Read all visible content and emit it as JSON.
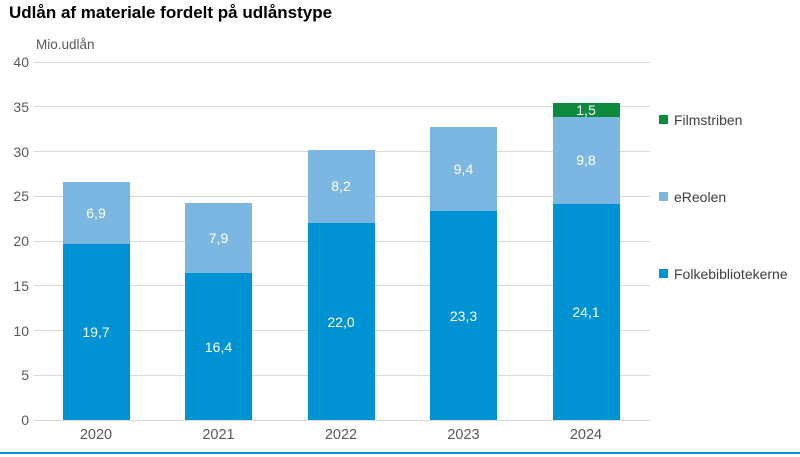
{
  "chart_data": {
    "type": "bar",
    "stacked": true,
    "title": "Udlån af materiale fordelt på udlånstype",
    "unit_label": "Mio.udlån",
    "categories": [
      "2020",
      "2021",
      "2022",
      "2023",
      "2024"
    ],
    "series": [
      {
        "name": "Folkebibliotekerne",
        "color": "#0093d3",
        "values": [
          19.7,
          16.4,
          22.0,
          23.3,
          24.1
        ]
      },
      {
        "name": "eReolen",
        "color": "#7cb7e2",
        "values": [
          6.9,
          7.9,
          8.2,
          9.4,
          9.8
        ]
      },
      {
        "name": "Filmstriben",
        "color": "#0d8a3e",
        "values": [
          0,
          0,
          0,
          0,
          1.5
        ]
      }
    ],
    "value_labels": {
      "Folkebibliotekerne": [
        "19,7",
        "16,4",
        "22,0",
        "23,3",
        "24,1"
      ],
      "eReolen": [
        "6,9",
        "7,9",
        "8,2",
        "9,4",
        "9,8"
      ],
      "Filmstriben": [
        "",
        "",
        "",
        "",
        "1,5"
      ]
    },
    "ylim": [
      0,
      40
    ],
    "yticks": [
      0,
      5,
      10,
      15,
      20,
      25,
      30,
      35,
      40
    ],
    "grid": true,
    "legend_position": "right"
  },
  "legend": {
    "items": [
      {
        "label": "Filmstriben",
        "color": "#0d8a3e"
      },
      {
        "label": "eReolen",
        "color": "#7cb7e2"
      },
      {
        "label": "Folkebibliotekerne",
        "color": "#0093d3"
      }
    ]
  },
  "colors": {
    "folkebibliotekerne": "#0093d3",
    "ereolen": "#7cb7e2",
    "filmstriben": "#0d8a3e",
    "gridline": "#d9d9d9",
    "axis_text": "#595959",
    "title_text": "#000000",
    "bottom_rule": "#0093d3"
  }
}
